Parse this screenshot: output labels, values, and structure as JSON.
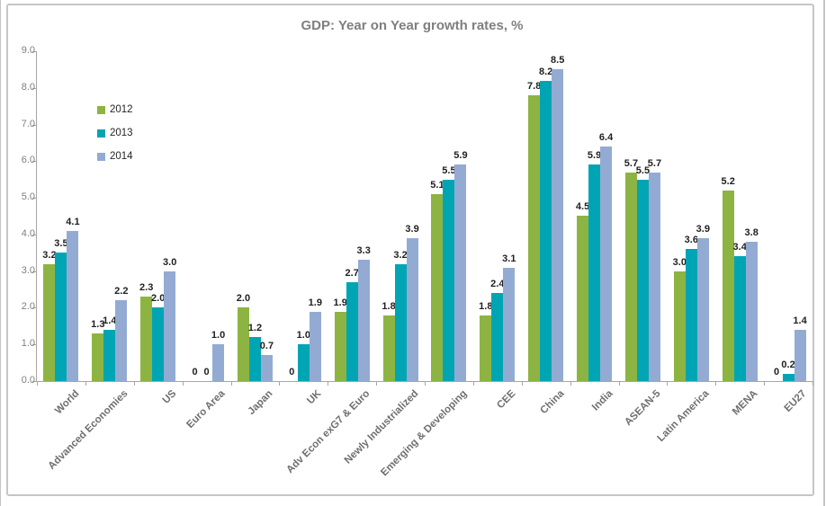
{
  "chart_data": {
    "type": "bar",
    "title": "GDP: Year on Year growth rates, %",
    "categories": [
      "World",
      "Advanced Economies",
      "US",
      "Euro Area",
      "Japan",
      "UK",
      "Adv Econ exG7 & Euro",
      "Newly Industrialized",
      "Emerging & Developing",
      "CEE",
      "China",
      "India",
      "ASEAN-5",
      "Latin America",
      "MENA",
      "EU27"
    ],
    "series": [
      {
        "name": "2012",
        "color": "#8DB442",
        "values": [
          3.2,
          1.3,
          2.3,
          0,
          2.0,
          0,
          1.9,
          1.8,
          5.1,
          1.8,
          7.8,
          4.5,
          5.7,
          3.0,
          5.2,
          0
        ]
      },
      {
        "name": "2013",
        "color": "#00A5B4",
        "values": [
          3.5,
          1.4,
          2.0,
          0,
          1.2,
          1.0,
          2.7,
          3.2,
          5.5,
          2.4,
          8.2,
          5.9,
          5.5,
          3.6,
          3.4,
          0.2
        ]
      },
      {
        "name": "2014",
        "color": "#93ABD3",
        "values": [
          4.1,
          2.2,
          3.0,
          1.0,
          0.7,
          1.9,
          3.3,
          3.9,
          5.9,
          3.1,
          8.5,
          6.4,
          5.7,
          3.9,
          3.8,
          1.4
        ]
      }
    ],
    "xlabel": "",
    "ylabel": "",
    "ylim": [
      0,
      9
    ],
    "ytick_labels": [
      "0.0",
      "1.0",
      "2.0",
      "3.0",
      "4.0",
      "5.0",
      "6.0",
      "7.0",
      "8.0",
      "9.0"
    ],
    "grid": false,
    "legend_position": "inside-upper-left",
    "legend_entries": [
      "2012",
      "2013",
      "2014"
    ],
    "data_label_zero_text": "0"
  },
  "colors": {
    "title": "#7f7f7f",
    "axis": "#a6a6a6",
    "frame_border": "#c6c6c6",
    "tick_label": "#7f7f7f",
    "category_label": "#6f6f6f",
    "data_label": "#1f1f1f"
  }
}
